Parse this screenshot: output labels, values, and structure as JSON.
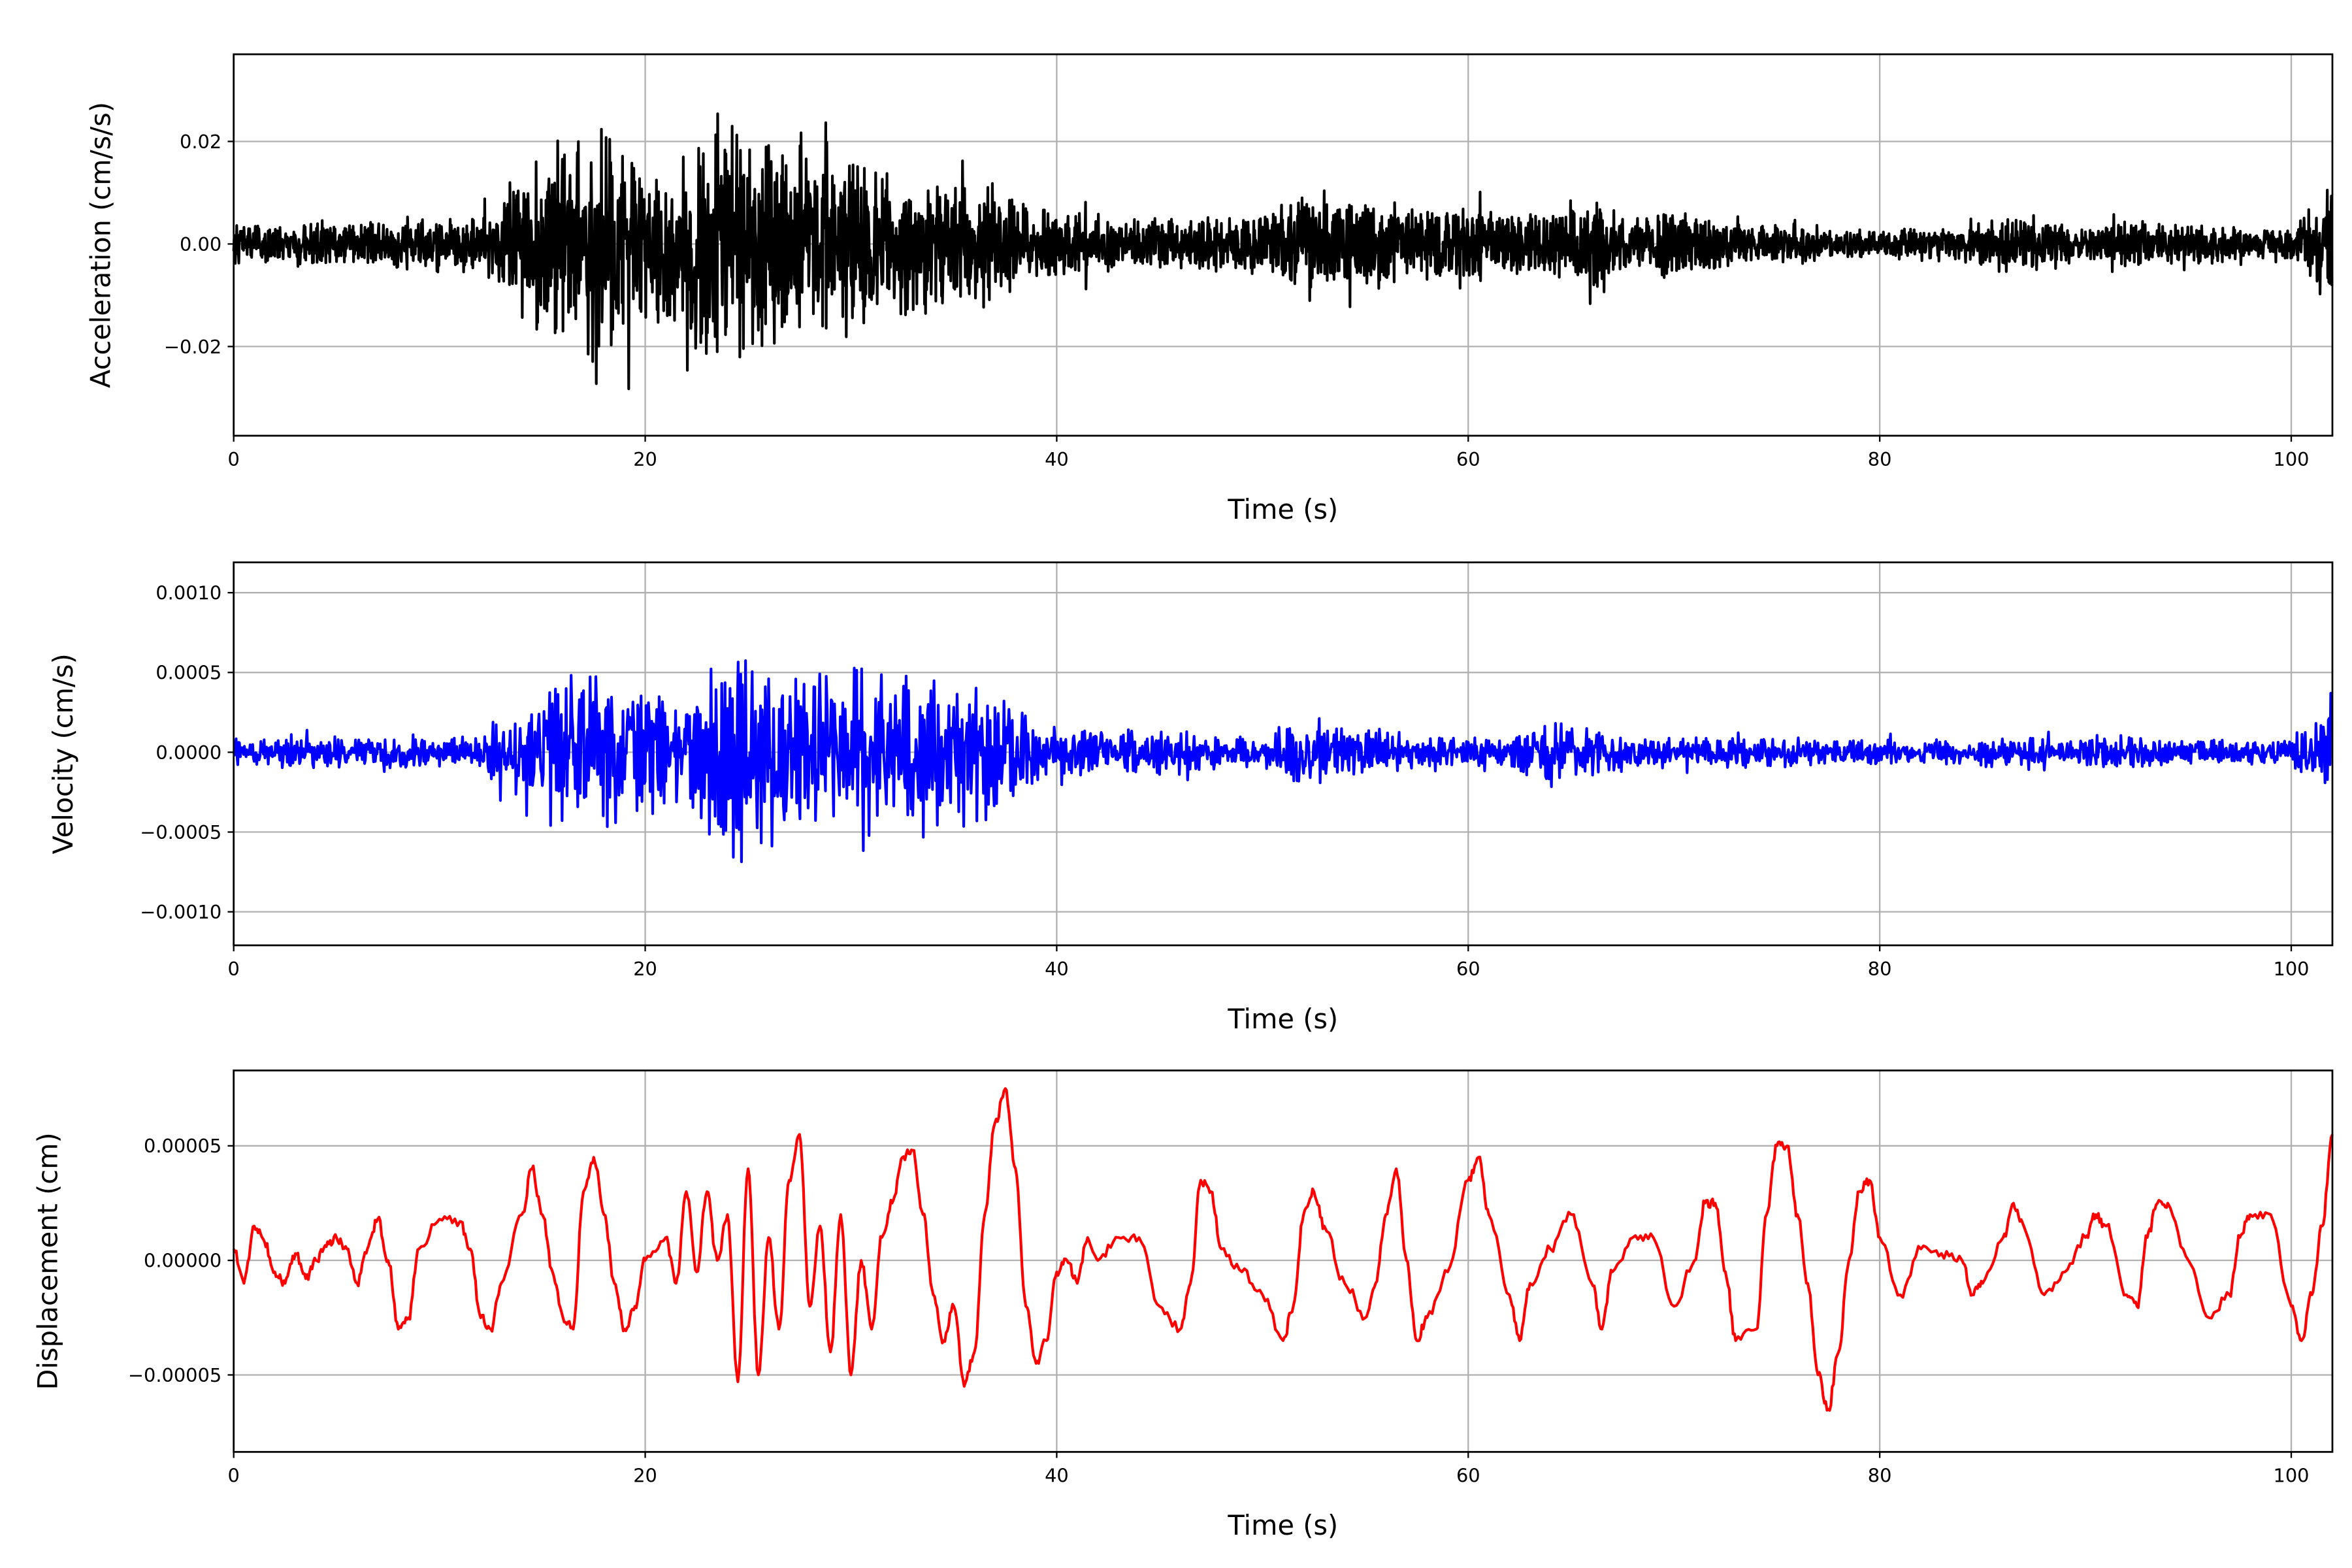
{
  "chart_data": [
    {
      "type": "line",
      "ylabel": "Acceleration (cm/s/s)",
      "xlabel": "Time (s)",
      "color": "#000000",
      "xlim": [
        0,
        102
      ],
      "ylim": [
        -0.0374,
        0.037
      ],
      "xticks": [
        0,
        20,
        40,
        60,
        80,
        100
      ],
      "xtick_labels": [
        "0",
        "20",
        "40",
        "60",
        "80",
        "100"
      ],
      "yticks": [
        -0.02,
        0.0,
        0.02
      ],
      "ytick_labels": [
        "−0.02",
        "0.00",
        "0.02"
      ],
      "grid": true,
      "series_note": "amplitude envelope sampled every 2 s (t = 0..102), oscillating record",
      "envelope_t_step": 2,
      "envelope": [
        0.004,
        0.004,
        0.004,
        0.004,
        0.005,
        0.005,
        0.005,
        0.015,
        0.022,
        0.025,
        0.015,
        0.018,
        0.026,
        0.02,
        0.022,
        0.018,
        0.014,
        0.014,
        0.014,
        0.01,
        0.006,
        0.006,
        0.005,
        0.005,
        0.006,
        0.006,
        0.01,
        0.008,
        0.01,
        0.007,
        0.008,
        0.006,
        0.006,
        0.009,
        0.005,
        0.008,
        0.005,
        0.004,
        0.004,
        0.003,
        0.003,
        0.003,
        0.003,
        0.006,
        0.005,
        0.003,
        0.005,
        0.004,
        0.004,
        0.003,
        0.003,
        0.012
      ]
    },
    {
      "type": "line",
      "ylabel": "Velocity (cm/s)",
      "xlabel": "Time (s)",
      "color": "#0000ff",
      "xlim": [
        0,
        102
      ],
      "ylim": [
        -0.00121,
        0.00119
      ],
      "xticks": [
        0,
        20,
        40,
        60,
        80,
        100
      ],
      "xtick_labels": [
        "0",
        "20",
        "40",
        "60",
        "80",
        "100"
      ],
      "yticks": [
        -0.001,
        -0.0005,
        0.0,
        0.0005,
        0.001
      ],
      "ytick_labels": [
        "−0.0010",
        "−0.0005",
        "0.0000",
        "0.0005",
        "0.0010"
      ],
      "grid": true,
      "envelope_t_step": 2,
      "envelope": [
        0.0001,
        0.0001,
        0.0001,
        0.0001,
        0.0001,
        0.0001,
        0.0001,
        0.0004,
        0.0005,
        0.0005,
        0.0004,
        0.0004,
        0.0008,
        0.0006,
        0.0005,
        0.0006,
        0.0005,
        0.0004,
        0.0005,
        0.0003,
        0.00015,
        0.00015,
        0.00015,
        0.00015,
        0.0001,
        0.0001,
        0.00025,
        0.00015,
        0.00015,
        0.0001,
        0.0001,
        0.0001,
        0.0002,
        0.00015,
        0.0001,
        0.0001,
        0.0001,
        0.0001,
        0.0001,
        8e-05,
        8e-05,
        8e-05,
        8e-05,
        0.0001,
        0.0001,
        0.0001,
        0.00012,
        8e-05,
        8e-05,
        8e-05,
        0.0001,
        0.0003
      ]
    },
    {
      "type": "line",
      "ylabel": "Displacement (cm)",
      "xlabel": "Time (s)",
      "color": "#ff0000",
      "xlim": [
        0,
        102
      ],
      "ylim": [
        -8.36e-05,
        8.29e-05
      ],
      "xticks": [
        0,
        20,
        40,
        60,
        80,
        100
      ],
      "xtick_labels": [
        "0",
        "20",
        "40",
        "60",
        "80",
        "100"
      ],
      "yticks": [
        -5e-05,
        0.0,
        5e-05
      ],
      "ytick_labels": [
        "−0.00005",
        "0.00000",
        "0.00005"
      ],
      "grid": true,
      "y_unit_scale": 1e-05,
      "x": [
        0,
        0.5,
        1,
        1.5,
        2,
        2.5,
        3,
        3.5,
        4,
        4.5,
        5,
        5.5,
        6,
        6.5,
        7,
        7.5,
        8,
        8.5,
        9,
        10,
        11,
        11.5,
        12,
        12.5,
        13,
        14,
        14.5,
        15,
        15.5,
        16,
        16.5,
        17,
        17.5,
        18,
        18.5,
        19,
        19.5,
        20,
        21,
        21.5,
        22,
        22.5,
        23,
        23.5,
        24,
        24.5,
        25,
        25.5,
        26,
        26.5,
        27,
        27.5,
        28,
        28.5,
        29,
        29.5,
        30,
        30.5,
        31,
        31.5,
        32,
        32.5,
        33,
        33.5,
        34,
        34.5,
        35,
        35.5,
        36,
        36.5,
        37,
        37.5,
        38,
        38.5,
        39,
        39.5,
        40,
        40.5,
        41,
        41.5,
        42,
        43,
        44,
        45,
        46,
        46.5,
        47,
        47.5,
        48,
        49,
        50,
        51,
        51.5,
        52,
        52.5,
        53,
        54,
        55,
        55.5,
        56,
        56.5,
        57,
        57.5,
        58,
        59,
        60,
        60.5,
        61,
        62,
        62.5,
        63,
        64,
        65,
        66,
        66.5,
        67,
        68,
        69,
        70,
        71,
        71.5,
        72,
        72.5,
        73,
        74,
        74.5,
        75,
        75.5,
        76,
        76.5,
        77,
        77.5,
        78,
        78.5,
        79,
        79.5,
        80,
        81,
        82,
        83,
        84,
        84.5,
        85,
        86,
        86.5,
        87,
        88,
        89,
        90,
        90.5,
        91,
        92,
        92.5,
        93,
        93.5,
        94,
        95,
        96,
        97,
        97.5,
        98,
        99,
        100,
        100.5,
        101,
        101.5,
        102
      ],
      "y": [
        0.5,
        -1.0,
        1.5,
        0.8,
        -0.5,
        -1.0,
        0.3,
        -0.8,
        0,
        0.6,
        1.0,
        0.5,
        -1.0,
        0.5,
        1.8,
        0,
        -3.0,
        -2.5,
        0.5,
        1.8,
        1.7,
        0.5,
        -2.5,
        -3.0,
        -1,
        2,
        4,
        2,
        -0.5,
        -2.5,
        -3,
        3,
        4.5,
        2,
        -1,
        -3,
        -2,
        0,
        1,
        -1,
        3,
        -0.5,
        3,
        0,
        2,
        -5.3,
        4,
        -5,
        1,
        -3,
        3.5,
        5.5,
        -2,
        1.5,
        -4,
        2,
        -5,
        0,
        -3,
        1,
        2.5,
        4.5,
        4.8,
        2,
        -1.5,
        -3.5,
        -2,
        -5.5,
        -4,
        2,
        6,
        7.5,
        4,
        -2,
        -4.5,
        -3.5,
        -0.5,
        0,
        -1,
        1,
        0,
        1,
        1,
        -2,
        -3,
        -1,
        3.5,
        3,
        0.5,
        -0.5,
        -1.5,
        -3.5,
        -2,
        2,
        3,
        1.5,
        -1,
        -2.5,
        -1,
        2,
        4,
        0,
        -3.5,
        -2.5,
        -0.5,
        3.5,
        4.5,
        2,
        -1.5,
        -3.5,
        -1,
        0.5,
        2,
        -1,
        -3,
        -0.5,
        1,
        1,
        -2,
        0,
        2.5,
        2.5,
        -0.5,
        -3.5,
        -3,
        2,
        5,
        5,
        2,
        -1,
        -5,
        -6.5,
        -4,
        0,
        3,
        3.5,
        1,
        -1.5,
        0.5,
        0.3,
        0,
        -1.5,
        -1,
        1,
        2.5,
        1.5,
        -1.5,
        -0.5,
        1,
        2,
        1.5,
        -1.5,
        -2,
        1,
        2.5,
        2.5,
        0,
        -2.5,
        -1.5,
        1,
        2,
        2,
        -2,
        -3.5,
        -1.5,
        1.5,
        5.5
      ]
    }
  ]
}
